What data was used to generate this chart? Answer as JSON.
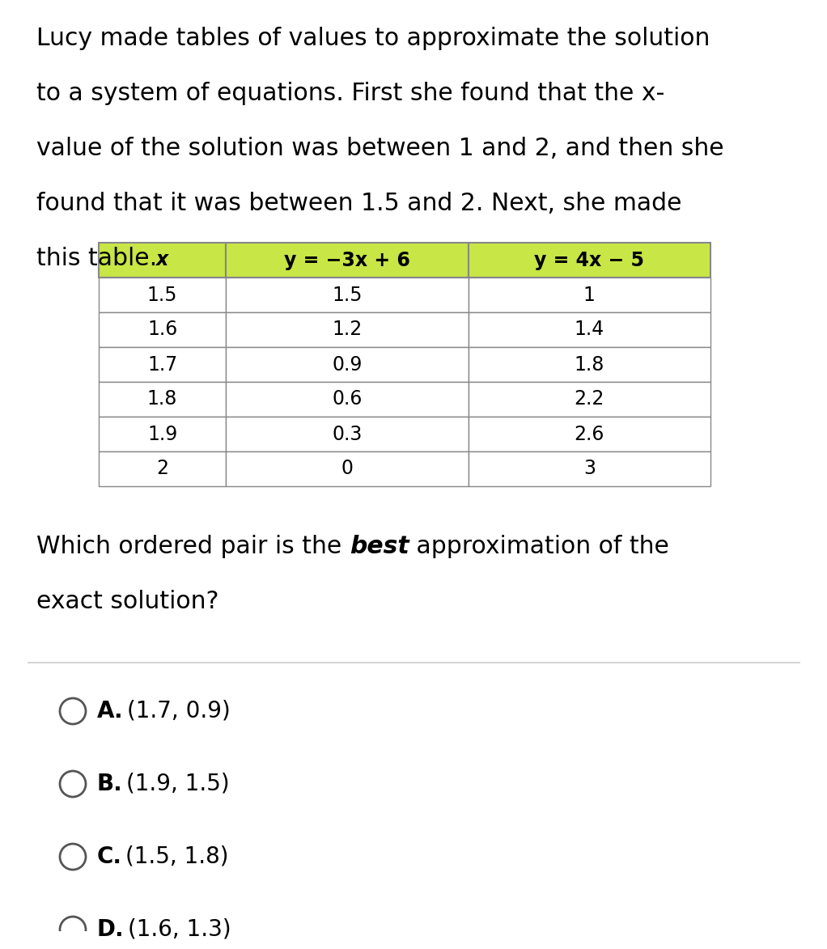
{
  "background_color": "#ffffff",
  "para_lines": [
    "Lucy made tables of values to approximate the solution",
    "to a system of equations. First she found that the x-",
    "value of the solution was between 1 and 2, and then she",
    "found that it was between 1.5 and 2. Next, she made",
    "this table."
  ],
  "para_italic_line": 1,
  "para_italic_word": "x-",
  "table_header_bg": "#c8e645",
  "table_border_color": "#888888",
  "table_col_headers": [
    "x",
    "y = −3x + 6",
    "y = 4x − 5"
  ],
  "table_rows": [
    [
      "1.5",
      "1.5",
      "1"
    ],
    [
      "1.6",
      "1.2",
      "1.4"
    ],
    [
      "1.7",
      "0.9",
      "1.8"
    ],
    [
      "1.8",
      "0.6",
      "2.2"
    ],
    [
      "1.9",
      "0.3",
      "2.6"
    ],
    [
      "2",
      "0",
      "3"
    ]
  ],
  "q_line1_pre": "Which ordered pair is the ",
  "q_line1_italic": "best",
  "q_line1_post": " approximation of the",
  "q_line2": "exact solution?",
  "sep_color": "#cccccc",
  "choices": [
    {
      "letter": "A.",
      "text": "(1.7, 0.9)"
    },
    {
      "letter": "B.",
      "text": "(1.9, 1.5)"
    },
    {
      "letter": "C.",
      "text": "(1.5, 1.8)"
    },
    {
      "letter": "D.",
      "text": "(1.6, 1.3)"
    }
  ],
  "font_size_para": 21.5,
  "font_size_table_header": 17,
  "font_size_table_data": 17,
  "font_size_question": 21.5,
  "font_size_choices": 20,
  "font_family": "DejaVu Sans"
}
